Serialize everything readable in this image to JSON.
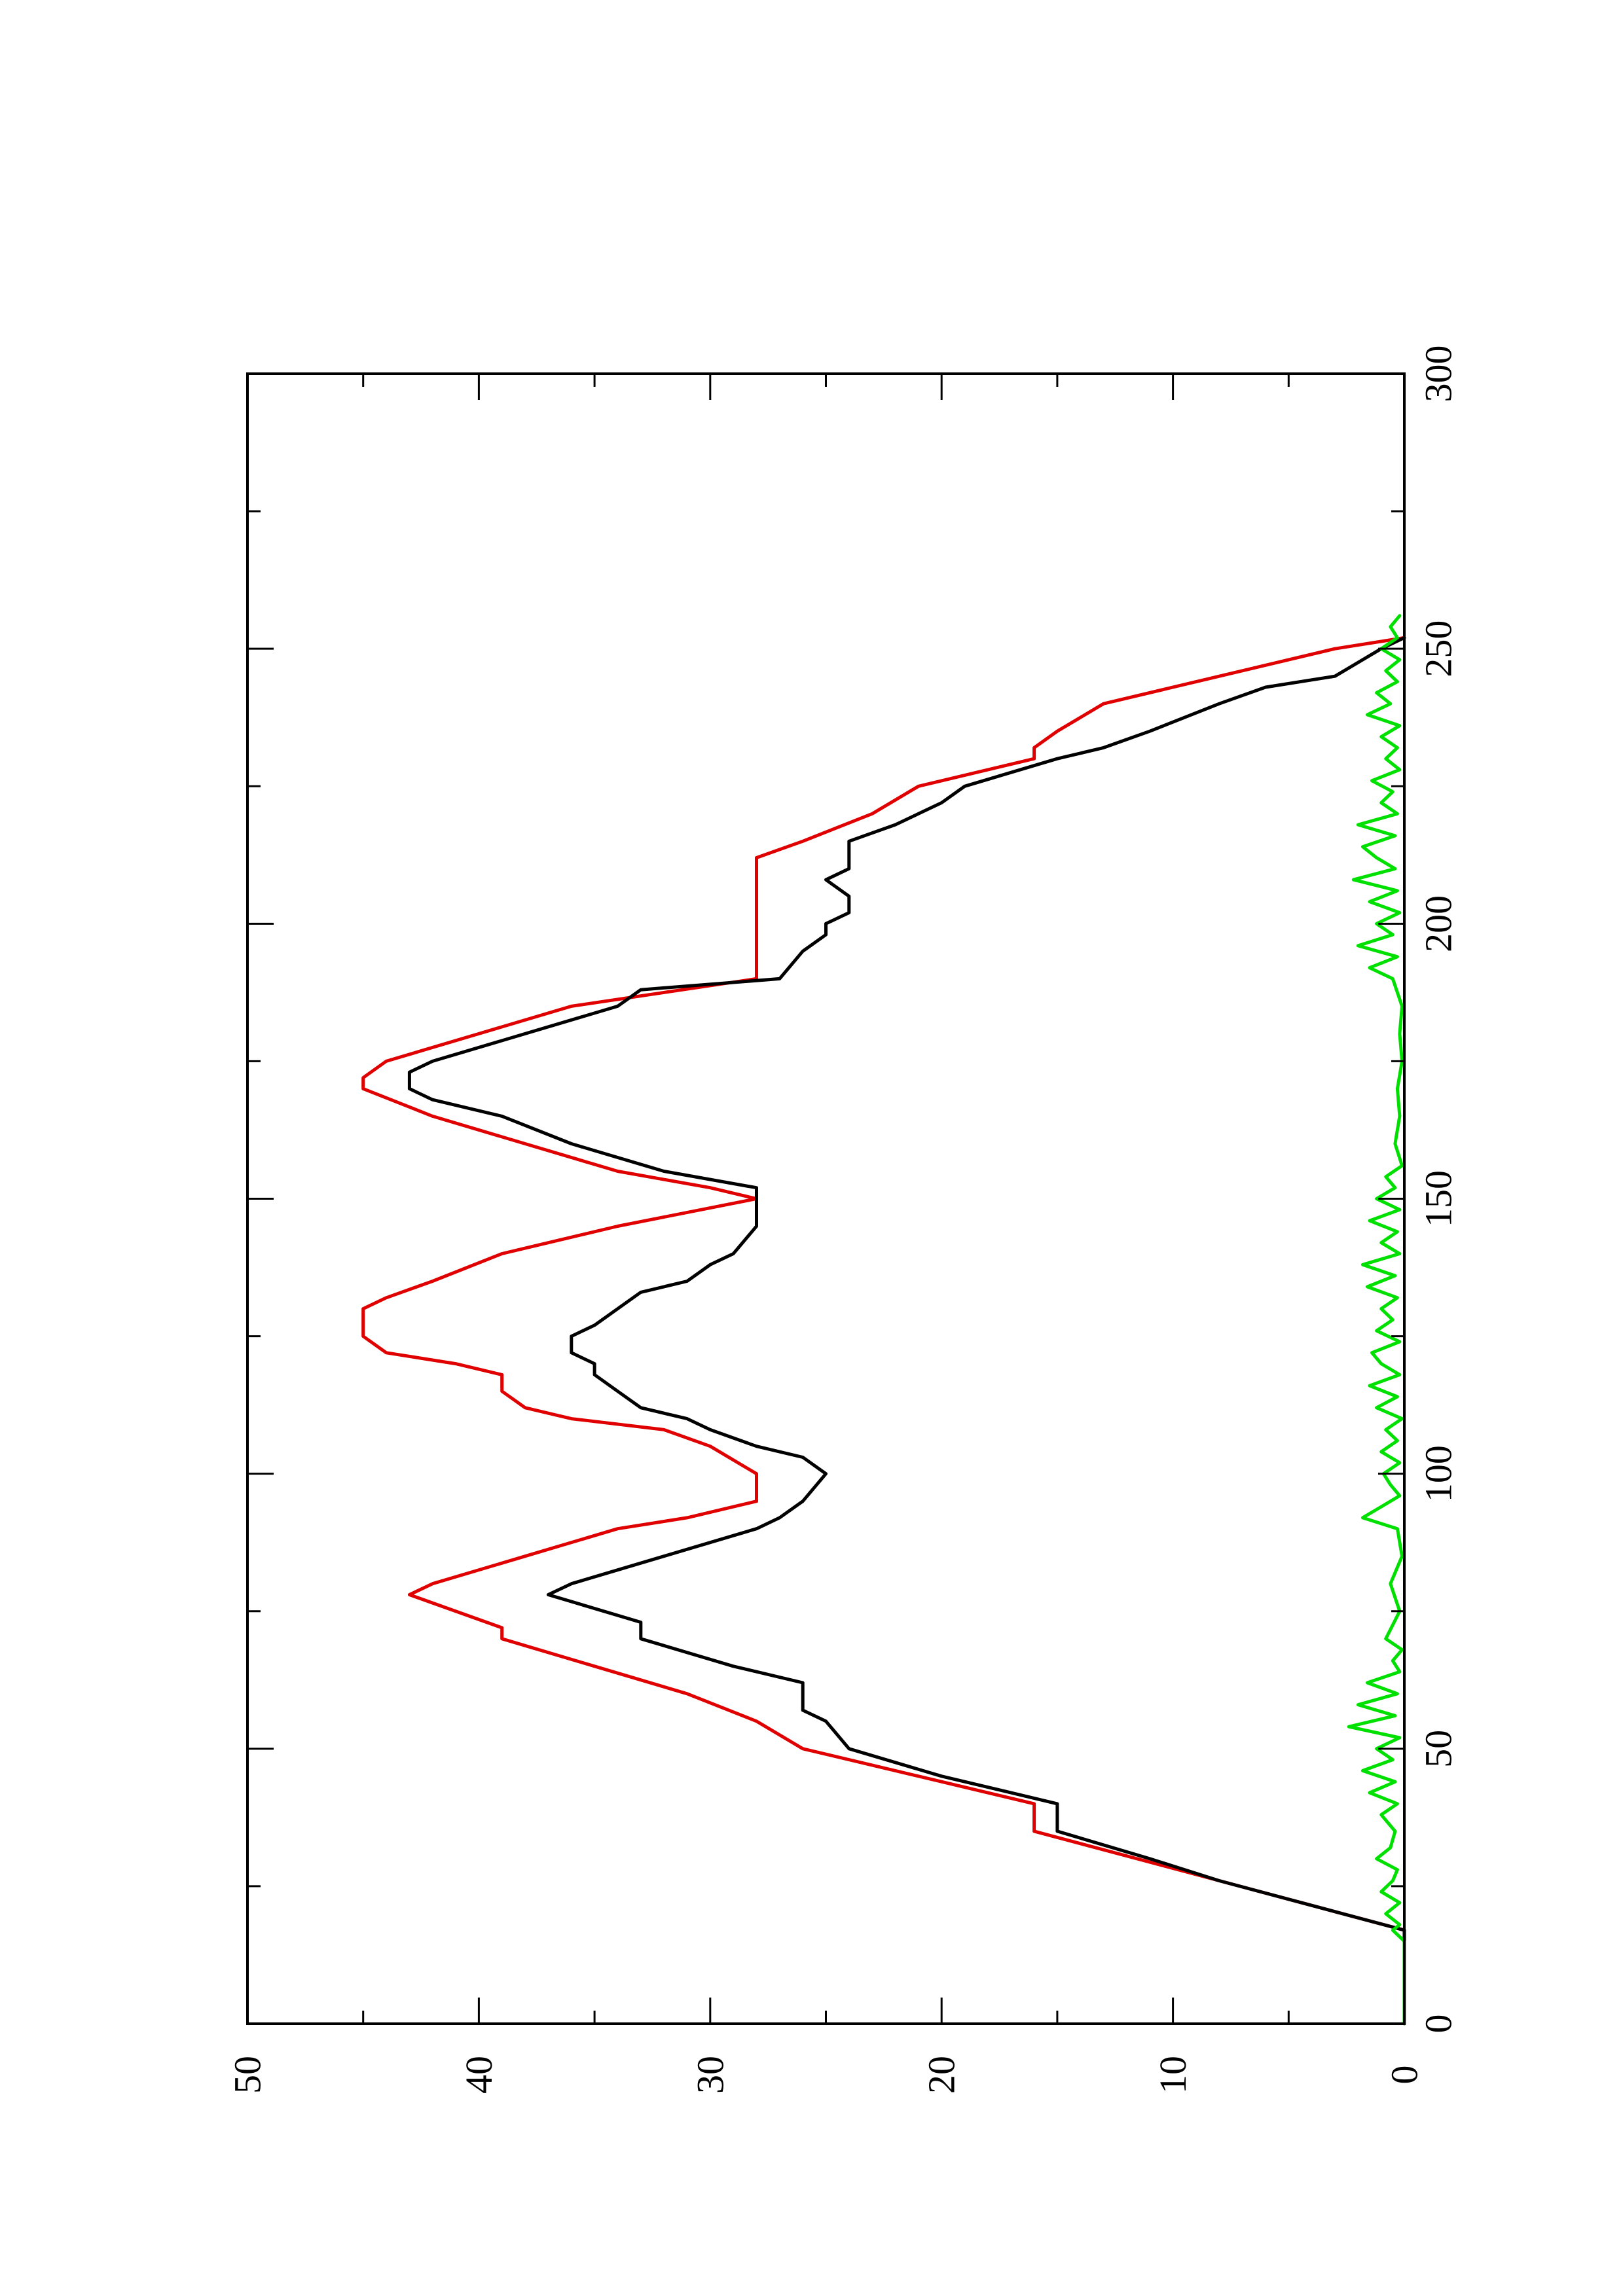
{
  "chart_data": {
    "type": "line",
    "orientation": "rotated-90-ccw",
    "title": "",
    "xlabel": "",
    "ylabel": "",
    "xlim": [
      0,
      300
    ],
    "ylim": [
      0,
      50
    ],
    "x_ticks": [
      "0",
      "50",
      "100",
      "150",
      "200",
      "250",
      "300"
    ],
    "y_ticks": [
      "0",
      "10",
      "20",
      "30",
      "40",
      "50"
    ],
    "grid": false,
    "legend": "none",
    "series": [
      {
        "color": "#e00000",
        "x": [
          0,
          17,
          26,
          35,
          40,
          45,
          50,
          55,
          60,
          65,
          70,
          72,
          78,
          80,
          85,
          90,
          92,
          95,
          100,
          105,
          108,
          110,
          112,
          115,
          118,
          120,
          122,
          125,
          130,
          132,
          135,
          140,
          145,
          150,
          152,
          155,
          160,
          165,
          170,
          172,
          175,
          180,
          185,
          190,
          195,
          200,
          205,
          210,
          212,
          215,
          220,
          225,
          230,
          232,
          235,
          240,
          245,
          250,
          252
        ],
        "y": [
          0,
          0,
          8,
          16,
          16,
          21,
          26,
          28,
          31,
          35,
          39,
          39,
          43,
          42,
          38,
          34,
          31,
          28,
          28,
          30,
          32,
          36,
          38,
          39,
          39,
          41,
          44,
          45,
          45,
          44,
          42,
          39,
          34,
          28,
          30,
          34,
          38,
          42,
          45,
          45,
          44,
          40,
          36,
          28,
          28,
          28,
          28,
          28,
          28,
          26,
          23,
          21,
          16,
          16,
          15,
          13,
          8,
          3,
          0
        ]
      },
      {
        "color": "#000000",
        "x": [
          0,
          17,
          26,
          30,
          35,
          40,
          45,
          50,
          55,
          57,
          60,
          62,
          65,
          70,
          73,
          78,
          80,
          85,
          90,
          92,
          95,
          100,
          103,
          105,
          108,
          110,
          112,
          115,
          118,
          120,
          122,
          125,
          127,
          130,
          133,
          135,
          138,
          140,
          145,
          148,
          150,
          152,
          155,
          160,
          165,
          168,
          170,
          173,
          175,
          180,
          185,
          188,
          190,
          195,
          198,
          200,
          202,
          205,
          208,
          210,
          212,
          215,
          218,
          220,
          222,
          225,
          230,
          232,
          235,
          240,
          243,
          245,
          250,
          252
        ],
        "y": [
          0,
          0,
          8,
          11,
          15,
          15,
          20,
          24,
          25,
          26,
          26,
          26,
          29,
          33,
          33,
          37,
          36,
          32,
          28,
          27,
          26,
          25,
          26,
          28,
          30,
          31,
          33,
          34,
          35,
          35,
          36,
          36,
          35,
          34,
          33,
          31,
          30,
          29,
          28,
          28,
          28,
          28,
          32,
          36,
          39,
          42,
          43,
          43,
          42,
          38,
          34,
          33,
          27,
          26,
          25,
          25,
          24,
          24,
          25,
          24,
          24,
          24,
          22,
          21,
          20,
          19,
          15,
          13,
          11,
          8,
          6,
          3,
          1,
          0
        ]
      },
      {
        "color": "#00e000",
        "x": [
          0,
          5,
          10,
          15,
          17,
          18,
          20,
          22,
          24,
          26,
          28,
          30,
          32,
          35,
          38,
          40,
          42,
          44,
          46,
          48,
          50,
          52,
          54,
          56,
          58,
          60,
          62,
          64,
          66,
          68,
          70,
          75,
          80,
          85,
          90,
          92,
          94,
          96,
          98,
          100,
          102,
          104,
          106,
          108,
          110,
          112,
          114,
          116,
          118,
          120,
          122,
          124,
          126,
          128,
          130,
          132,
          134,
          136,
          138,
          140,
          142,
          144,
          146,
          148,
          150,
          152,
          154,
          156,
          160,
          165,
          170,
          175,
          180,
          185,
          190,
          192,
          194,
          196,
          198,
          200,
          202,
          204,
          206,
          208,
          210,
          212,
          214,
          216,
          218,
          220,
          222,
          224,
          226,
          228,
          230,
          232,
          234,
          236,
          238,
          240,
          242,
          244,
          246,
          248,
          250,
          252,
          254,
          256
        ],
        "y": [
          0,
          0,
          0,
          0,
          0.5,
          0.2,
          0.8,
          0.2,
          1.0,
          0.5,
          0.3,
          1.2,
          0.6,
          0.4,
          1.0,
          0.3,
          1.5,
          0.4,
          1.8,
          0.5,
          1.2,
          0.2,
          2.4,
          0.4,
          2.0,
          0.3,
          1.6,
          0.2,
          0.5,
          0.1,
          0.8,
          0.2,
          0.6,
          0.1,
          0.3,
          1.8,
          1.0,
          0.2,
          0.6,
          0.9,
          0.2,
          1.0,
          0.3,
          0.8,
          0.1,
          1.2,
          0.3,
          1.5,
          0.2,
          1.0,
          1.4,
          0.2,
          1.2,
          0.5,
          1.0,
          0.3,
          1.6,
          0.4,
          1.8,
          0.2,
          1.0,
          0.3,
          1.5,
          0.2,
          1.2,
          0.4,
          0.8,
          0.1,
          0.4,
          0.2,
          0.3,
          0.1,
          0.2,
          0.1,
          0.5,
          1.5,
          0.3,
          2.0,
          0.5,
          1.2,
          0.2,
          1.5,
          0.3,
          2.2,
          0.4,
          1.2,
          1.8,
          0.4,
          2.0,
          0.3,
          1.0,
          0.5,
          1.4,
          0.2,
          0.8,
          0.3,
          1.0,
          0.2,
          1.6,
          0.6,
          1.2,
          0.3,
          0.8,
          0.2,
          1.0,
          0.3,
          0.6,
          0.2
        ]
      }
    ]
  }
}
